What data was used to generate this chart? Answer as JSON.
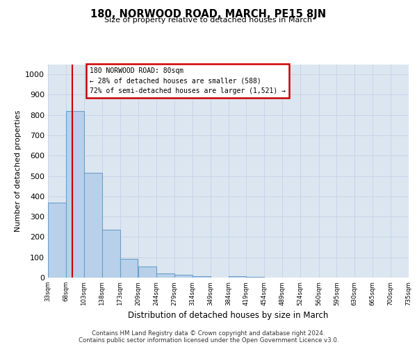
{
  "title": "180, NORWOOD ROAD, MARCH, PE15 8JN",
  "subtitle": "Size of property relative to detached houses in March",
  "xlabel": "Distribution of detached houses by size in March",
  "ylabel": "Number of detached properties",
  "bin_edges": [
    33,
    68,
    103,
    138,
    173,
    209,
    244,
    279,
    314,
    349,
    384,
    419,
    454,
    489,
    524,
    560,
    595,
    630,
    665,
    700,
    735
  ],
  "bar_heights": [
    370,
    820,
    515,
    235,
    92,
    53,
    22,
    14,
    8,
    0,
    8,
    5,
    0,
    0,
    0,
    0,
    0,
    0,
    0,
    0
  ],
  "tick_labels": [
    "33sqm",
    "68sqm",
    "103sqm",
    "138sqm",
    "173sqm",
    "209sqm",
    "244sqm",
    "279sqm",
    "314sqm",
    "349sqm",
    "384sqm",
    "419sqm",
    "454sqm",
    "489sqm",
    "524sqm",
    "560sqm",
    "595sqm",
    "630sqm",
    "665sqm",
    "700sqm",
    "735sqm"
  ],
  "bar_color": "#b8d0ea",
  "bar_edge_color": "#6a9fc8",
  "ylim": [
    0,
    1050
  ],
  "yticks": [
    0,
    100,
    200,
    300,
    400,
    500,
    600,
    700,
    800,
    900,
    1000
  ],
  "property_line_x": 80,
  "annotation_line1": "180 NORWOOD ROAD: 80sqm",
  "annotation_line2": "← 28% of detached houses are smaller (588)",
  "annotation_line3": "72% of semi-detached houses are larger (1,521) →",
  "annotation_box_color": "#ffffff",
  "annotation_box_edge": "#cc0000",
  "red_line_color": "#cc0000",
  "grid_color": "#c8d4e8",
  "bg_color": "#dce6f0",
  "footer_line1": "Contains HM Land Registry data © Crown copyright and database right 2024.",
  "footer_line2": "Contains public sector information licensed under the Open Government Licence v3.0."
}
